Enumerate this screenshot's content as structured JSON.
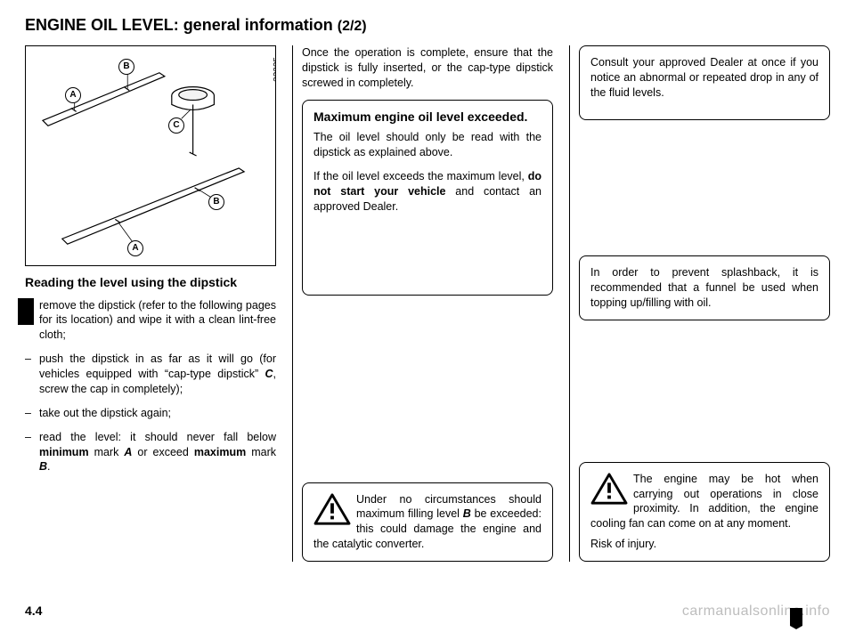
{
  "title_main": "ENGINE OIL LEVEL: general information",
  "title_part": "(2/2)",
  "figure": {
    "number": "32325",
    "callouts": {
      "A": "A",
      "B": "B",
      "C": "C"
    }
  },
  "col1": {
    "heading": "Reading the level using the dipstick",
    "bullets": [
      "remove the dipstick (refer to the following pages for its location) and wipe it with a clean lint-free cloth;",
      "push the dipstick in as far as it will go (for vehicles equipped with “cap-type dipstick” <b><i>C</i></b>, screw the cap in completely);",
      "take out the dipstick again;",
      "read the level: it should never fall below <b>minimum</b> mark <b><i>A</i></b> or exceed <b>maximum</b> mark <b><i>B</i></b>."
    ]
  },
  "col2": {
    "top_para": "Once the operation is complete, ensure that the dipstick is fully inserted, or the cap-type dipstick screwed in completely.",
    "info_box": {
      "title": "Maximum engine oil level exceeded.",
      "p1": "The oil level should only be read with the dipstick as explained above.",
      "p2": "If the oil level exceeds the maximum level, <b>do not start your vehicle</b> and contact an approved Dealer."
    },
    "warn": "Under no circumstances should maximum filling level <b><i>B</i></b> be exceeded: this could damage the engine and the catalytic converter."
  },
  "col3": {
    "box1": "Consult your approved Dealer at once if you notice an abnormal or repeated drop in any of the fluid levels.",
    "box2": "In order to prevent splashback, it is recommended that a funnel be used when topping up/filling with oil.",
    "warn": {
      "p1": "The engine may be hot when carrying out operations in close proximity. In addition, the engine cooling fan can come on at any moment.",
      "p2": "Risk of injury."
    }
  },
  "page_number": "4.4",
  "watermark": "carmanualsonline.info",
  "colors": {
    "text": "#000000",
    "bg": "#ffffff",
    "watermark": "#bdbdbd"
  }
}
